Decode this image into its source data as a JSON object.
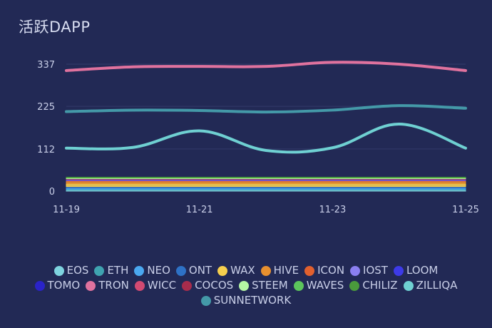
{
  "title": "活跃DAPP",
  "chart_data": {
    "type": "area",
    "title": "活跃DAPP",
    "x": [
      "11-19",
      "11-20",
      "11-21",
      "11-22",
      "11-23",
      "11-24",
      "11-25"
    ],
    "x_tick_labels": [
      "11-19",
      "11-21",
      "11-23",
      "11-25"
    ],
    "y_ticks": [
      0,
      112,
      225,
      337
    ],
    "ylim": [
      0,
      337
    ],
    "grid": true,
    "legend_position": "bottom",
    "series": [
      {
        "name": "EOS",
        "color": "#7ed3df",
        "values": [
          3,
          3,
          3,
          3,
          3,
          3,
          3
        ]
      },
      {
        "name": "ETH",
        "color": "#3fa3b0",
        "values": [
          2,
          2,
          2,
          2,
          2,
          2,
          2
        ]
      },
      {
        "name": "NEO",
        "color": "#4aa8f0",
        "values": [
          3,
          3,
          3,
          3,
          3,
          3,
          3
        ]
      },
      {
        "name": "ONT",
        "color": "#2e72c6",
        "values": [
          4,
          4,
          4,
          4,
          4,
          4,
          4
        ]
      },
      {
        "name": "WAX",
        "color": "#f6cf4e",
        "values": [
          8,
          8,
          8,
          8,
          8,
          8,
          8
        ]
      },
      {
        "name": "HIVE",
        "color": "#e8902f",
        "values": [
          6,
          6,
          6,
          6,
          6,
          6,
          6
        ]
      },
      {
        "name": "ICON",
        "color": "#e2602e",
        "values": [
          2,
          2,
          2,
          2,
          2,
          2,
          2
        ]
      },
      {
        "name": "IOST",
        "color": "#8b7ff0",
        "values": [
          1,
          1,
          1,
          1,
          1,
          1,
          1
        ]
      },
      {
        "name": "LOOM",
        "color": "#3d3ae8",
        "values": [
          1,
          1,
          1,
          1,
          1,
          1,
          1
        ]
      },
      {
        "name": "TOMO",
        "color": "#2a23c8",
        "values": [
          1,
          1,
          1,
          1,
          1,
          1,
          1
        ]
      },
      {
        "name": "TRON",
        "color": "#e0729e",
        "values": [
          320,
          330,
          331,
          331,
          342,
          337,
          320
        ]
      },
      {
        "name": "WICC",
        "color": "#d24a72",
        "values": [
          1,
          1,
          1,
          1,
          1,
          1,
          1
        ]
      },
      {
        "name": "COCOS",
        "color": "#a82c4c",
        "values": [
          1,
          1,
          1,
          1,
          1,
          1,
          1
        ]
      },
      {
        "name": "STEEM",
        "color": "#b4f5a4",
        "values": [
          2,
          2,
          2,
          2,
          2,
          2,
          2
        ]
      },
      {
        "name": "WAVES",
        "color": "#5cc45c",
        "values": [
          1,
          1,
          1,
          1,
          1,
          1,
          1
        ]
      },
      {
        "name": "CHILIZ",
        "color": "#4a9a3c",
        "values": [
          1,
          1,
          1,
          1,
          1,
          1,
          1
        ]
      },
      {
        "name": "ZILLIQA",
        "color": "#6fd0d2",
        "values": [
          114,
          116,
          160,
          108,
          115,
          178,
          114
        ]
      },
      {
        "name": "SUNNETWORK",
        "color": "#4499a8",
        "values": [
          211,
          215,
          214,
          210,
          215,
          227,
          220
        ]
      }
    ]
  }
}
